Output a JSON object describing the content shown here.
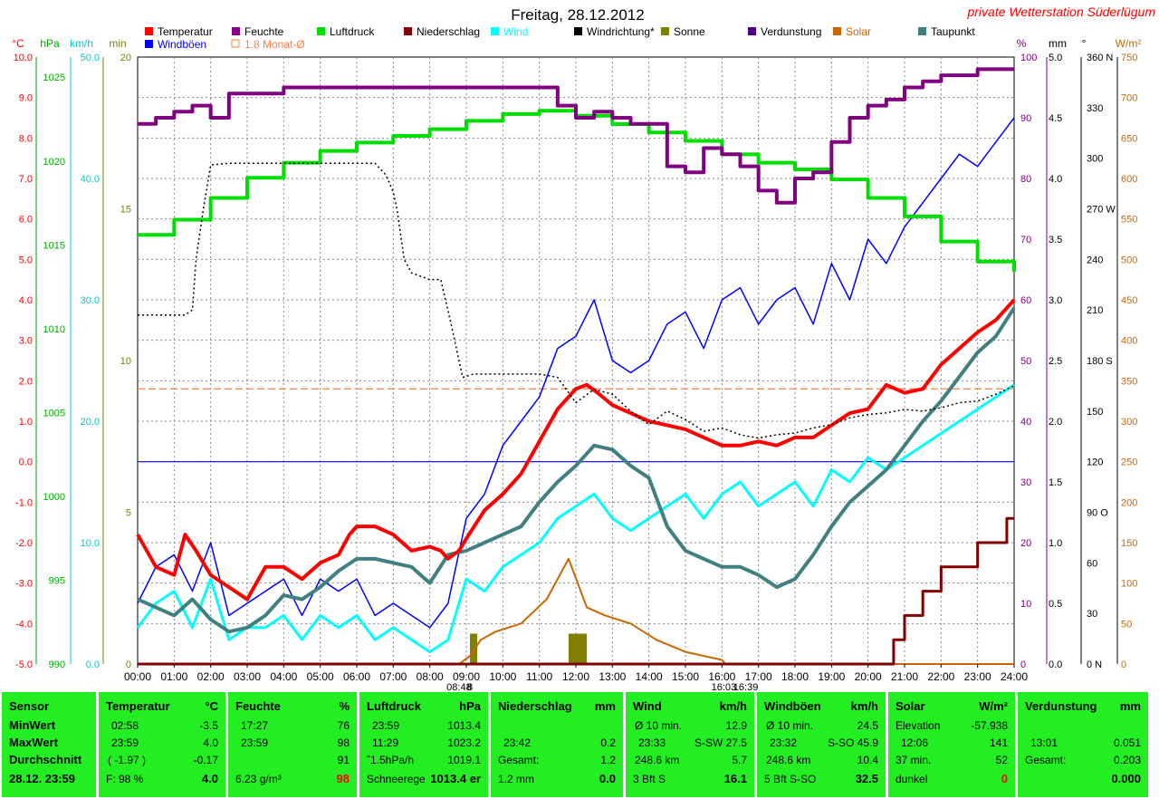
{
  "title": "Freitag, 28.12.2012",
  "brand": "private Wetterstation Süderlügum",
  "legend": [
    {
      "label": "Temperatur",
      "color": "#ff0000"
    },
    {
      "label": "Feuchte",
      "color": "#8b008b"
    },
    {
      "label": "Luftdruck",
      "color": "#00dd00"
    },
    {
      "label": "Niederschlag",
      "color": "#800000"
    },
    {
      "label": "Wind",
      "color": "#00ffff"
    },
    {
      "label": "Windrichtung*",
      "color": "#000000"
    },
    {
      "label": "Sonne",
      "color": "#808000"
    },
    {
      "label": "Verdunstung",
      "color": "#4b0082"
    },
    {
      "label": "Solar",
      "color": "#cc6600"
    },
    {
      "label": "Taupunkt",
      "color": "#408080"
    },
    {
      "label": "Windböen",
      "color": "#0000ff"
    },
    {
      "label": "1.8 Monat-Ø",
      "color": "#ff8040"
    }
  ],
  "axes": {
    "temp": {
      "unit": "°C",
      "color": "#ff0000",
      "ticks": [
        "10.0",
        "9.0",
        "8.0",
        "7.0",
        "6.0",
        "5.0",
        "4.0",
        "3.0",
        "2.0",
        "1.0",
        "0.0",
        "-1.0",
        "-2.0",
        "-3.0",
        "-4.0",
        "-5.0"
      ]
    },
    "press": {
      "unit": "hPa",
      "color": "#00aa00",
      "ticks": [
        "1025",
        "1020",
        "1015",
        "1010",
        "1005",
        "1000",
        "995",
        "990"
      ]
    },
    "wind": {
      "unit": "km/h",
      "color": "#00cccc",
      "ticks": [
        "50.0",
        "40.0",
        "30.0",
        "20.0",
        "10.0",
        "0.0"
      ]
    },
    "sun": {
      "unit": "min",
      "color": "#808000",
      "ticks": [
        "20",
        "15",
        "10",
        "5",
        "0"
      ]
    },
    "hum": {
      "unit": "%",
      "color": "#800080",
      "ticks": [
        "100",
        "90",
        "80",
        "70",
        "60",
        "50",
        "40",
        "30",
        "20",
        "10",
        "0"
      ]
    },
    "rain": {
      "unit": "mm",
      "color": "#000000",
      "ticks": [
        "5.0",
        "4.5",
        "4.0",
        "3.5",
        "3.0",
        "2.5",
        "2.0",
        "1.5",
        "1.0",
        "0.5",
        "0.0"
      ]
    },
    "dir": {
      "unit": "°",
      "color": "#000000",
      "ticks": [
        "360 N",
        "330",
        "300",
        "270 W",
        "240",
        "210",
        "180 S",
        "150",
        "120",
        "90 O",
        "60",
        "30",
        "0 N"
      ]
    },
    "solar": {
      "unit": "W/m²",
      "color": "#cc6600",
      "ticks": [
        "750",
        "700",
        "650",
        "600",
        "550",
        "500",
        "450",
        "400",
        "350",
        "300",
        "250",
        "200",
        "150",
        "100",
        "50",
        "0"
      ]
    }
  },
  "x_ticks": [
    "00:00",
    "01:00",
    "02:00",
    "03:00",
    "04:00",
    "05:00",
    "06:00",
    "07:00",
    "08:00",
    "09:00",
    "10:00",
    "11:00",
    "12:00",
    "13:00",
    "14:00",
    "15:00",
    "16:00",
    "17:00",
    "18:00",
    "19:00",
    "20:00",
    "21:00",
    "22:00",
    "23:00",
    "24:00"
  ],
  "x_markers": [
    {
      "label": "08:48",
      "x": 8.8
    },
    {
      "label": "8",
      "x": 9.1
    },
    {
      "label": "16:03",
      "x": 16.05
    },
    {
      "label": "16:39",
      "x": 16.65
    }
  ],
  "chart_data": {
    "type": "line",
    "x_range": [
      0,
      24
    ],
    "x_unit": "hour",
    "ylim_temp": [
      -5,
      10
    ],
    "ylim_hum": [
      0,
      100
    ],
    "ylim_press": [
      990,
      1026.2
    ],
    "ylim_wind": [
      0,
      50
    ],
    "ylim_rain": [
      0,
      5
    ],
    "ylim_dir": [
      0,
      360
    ],
    "ylim_solar": [
      0,
      750
    ],
    "ylim_sun": [
      0,
      20
    ],
    "series": [
      {
        "name": "Temperatur",
        "axis": "temp",
        "color": "#ff0000",
        "x": [
          0,
          0.5,
          1,
          1.3,
          1.6,
          2,
          2.5,
          3,
          3.5,
          4,
          4.5,
          5,
          5.5,
          5.8,
          6,
          6.5,
          7,
          7.5,
          8,
          8.3,
          8.5,
          8.8,
          9,
          9.5,
          10,
          10.5,
          11,
          11.5,
          12,
          12.3,
          12.6,
          13,
          13.5,
          14,
          14.5,
          15,
          15.5,
          16,
          16.5,
          17,
          17.5,
          18,
          18.5,
          19,
          19.5,
          20,
          20.5,
          21,
          21.5,
          22,
          22.5,
          23,
          23.5,
          24
        ],
        "y": [
          -1.8,
          -2.6,
          -2.8,
          -1.8,
          -2.2,
          -2.8,
          -3.1,
          -3.4,
          -2.6,
          -2.6,
          -2.9,
          -2.5,
          -2.3,
          -1.8,
          -1.6,
          -1.6,
          -1.8,
          -2.2,
          -2.1,
          -2.2,
          -2.4,
          -2.2,
          -1.9,
          -1.2,
          -0.8,
          -0.3,
          0.5,
          1.3,
          1.8,
          1.9,
          1.7,
          1.4,
          1.2,
          1.0,
          0.9,
          0.8,
          0.6,
          0.4,
          0.4,
          0.5,
          0.4,
          0.6,
          0.6,
          0.9,
          1.2,
          1.3,
          1.9,
          1.7,
          1.8,
          2.4,
          2.8,
          3.2,
          3.5,
          4.0
        ]
      },
      {
        "name": "Taupunkt",
        "axis": "temp",
        "color": "#408080",
        "x": [
          0,
          0.5,
          1,
          1.5,
          2,
          2.5,
          3,
          3.5,
          4,
          4.5,
          5,
          5.5,
          6,
          6.5,
          7,
          7.5,
          8,
          8.5,
          9,
          9.5,
          10,
          10.5,
          11,
          11.5,
          12,
          12.5,
          13,
          13.5,
          14,
          14.5,
          15,
          15.5,
          16,
          16.5,
          17,
          17.5,
          18,
          18.5,
          19,
          19.5,
          20,
          20.5,
          21,
          21.5,
          22,
          22.5,
          23,
          23.5,
          24
        ],
        "y": [
          -3.4,
          -3.6,
          -3.8,
          -3.4,
          -3.9,
          -4.2,
          -4.1,
          -3.8,
          -3.3,
          -3.4,
          -3.1,
          -2.7,
          -2.4,
          -2.4,
          -2.5,
          -2.6,
          -3.0,
          -2.3,
          -2.2,
          -2.0,
          -1.8,
          -1.6,
          -1.0,
          -0.5,
          -0.1,
          0.4,
          0.3,
          -0.1,
          -0.4,
          -1.6,
          -2.2,
          -2.4,
          -2.6,
          -2.6,
          -2.8,
          -3.1,
          -2.9,
          -2.3,
          -1.6,
          -1.0,
          -0.6,
          -0.2,
          0.4,
          1.0,
          1.5,
          2.1,
          2.7,
          3.1,
          3.8
        ]
      },
      {
        "name": "Feuchte",
        "axis": "hum",
        "color": "#800080",
        "x": [
          0,
          0.5,
          1,
          1.5,
          2,
          2.5,
          3,
          3.5,
          4,
          4.5,
          5,
          5.5,
          6,
          6.5,
          7,
          7.5,
          8,
          8.5,
          9,
          9.5,
          10,
          10.5,
          11,
          11.5,
          12,
          12.5,
          13,
          13.5,
          14,
          14.5,
          15,
          15.5,
          16,
          16.5,
          17,
          17.5,
          18,
          18.5,
          19,
          19.5,
          20,
          20.5,
          21,
          21.5,
          22,
          22.5,
          23,
          23.5,
          24
        ],
        "y": [
          89,
          90,
          91,
          92,
          90,
          94,
          94,
          94,
          95,
          95,
          95,
          95,
          95,
          95,
          95,
          95,
          95,
          95,
          95,
          95,
          95,
          95,
          95,
          92,
          90,
          91,
          90,
          89,
          89,
          82,
          81,
          85,
          84,
          82,
          78,
          76,
          80,
          81,
          86,
          90,
          92,
          93,
          95,
          96,
          97,
          97,
          98,
          98,
          98
        ]
      },
      {
        "name": "Luftdruck",
        "axis": "press",
        "color": "#00dd00",
        "x": [
          0,
          1,
          2,
          3,
          4,
          5,
          6,
          7,
          8,
          9,
          10,
          11,
          12,
          13,
          14,
          15,
          16,
          17,
          18,
          19,
          20,
          21,
          22,
          23,
          24
        ],
        "y": [
          1015.6,
          1016.5,
          1017.8,
          1019.0,
          1019.9,
          1020.6,
          1021.1,
          1021.5,
          1021.9,
          1022.4,
          1022.8,
          1023.0,
          1022.7,
          1022.2,
          1021.7,
          1021.2,
          1020.4,
          1019.9,
          1019.5,
          1018.9,
          1017.8,
          1016.7,
          1015.2,
          1014.0,
          1013.4
        ]
      },
      {
        "name": "Niederschlag",
        "axis": "rain",
        "color": "#800000",
        "x": [
          0,
          20.6,
          20.7,
          21,
          21.5,
          21.8,
          22,
          22.6,
          23,
          23.5,
          23.8,
          24
        ],
        "y": [
          0,
          0,
          0.2,
          0.4,
          0.6,
          0.6,
          0.8,
          0.8,
          1.0,
          1.0,
          1.2,
          1.2
        ]
      },
      {
        "name": "Windrichtung*",
        "axis": "dir",
        "color": "#000000",
        "x": [
          0,
          0.6,
          1.3,
          1.5,
          1.6,
          1.8,
          2,
          2.5,
          3,
          4,
          5,
          6,
          6.5,
          6.8,
          7.0,
          7.1,
          7.3,
          7.5,
          8,
          8.3,
          8.6,
          8.9,
          9.2,
          9.5,
          10,
          10.5,
          11,
          11.5,
          12,
          12.5,
          13,
          13.5,
          14,
          14.5,
          15,
          15.5,
          16,
          16.5,
          17,
          17.5,
          18,
          18.5,
          19,
          19.5,
          20,
          20.5,
          21,
          21.5,
          22,
          22.5,
          23,
          23.5,
          24
        ],
        "y": [
          207,
          207,
          207,
          210,
          240,
          270,
          296,
          297,
          297,
          297,
          297,
          297,
          297,
          290,
          280,
          270,
          240,
          232,
          228,
          228,
          200,
          170,
          172,
          172,
          172,
          172,
          172,
          170,
          155,
          163,
          160,
          150,
          142,
          150,
          145,
          138,
          140,
          136,
          134,
          136,
          137,
          140,
          142,
          146,
          148,
          149,
          151,
          150,
          152,
          155,
          156,
          160,
          165
        ]
      },
      {
        "name": "Solar",
        "axis": "solar",
        "color": "#cc6600",
        "x": [
          0,
          8.8,
          9.1,
          9.4,
          9.8,
          10.5,
          11.2,
          11.8,
          12.3,
          12.8,
          13.5,
          14.2,
          15,
          15.5,
          16.0,
          16.1,
          24
        ],
        "y": [
          0,
          0,
          10,
          30,
          40,
          50,
          80,
          130,
          70,
          60,
          50,
          30,
          15,
          10,
          5,
          0,
          0
        ]
      },
      {
        "name": "Sonne",
        "axis": "sun",
        "color": "#808000",
        "bars": [
          {
            "x": 9.1,
            "w": 0.2,
            "y": 1.0
          },
          {
            "x": 11.8,
            "w": 0.5,
            "y": 1.0
          }
        ]
      },
      {
        "name": "Wind",
        "axis": "wind",
        "color": "#00ffff",
        "x": [
          0,
          0.5,
          1,
          1.5,
          2,
          2.5,
          3,
          3.5,
          4,
          4.5,
          5,
          5.5,
          6,
          6.5,
          7,
          7.5,
          8,
          8.5,
          9,
          9.5,
          10,
          10.5,
          11,
          11.5,
          12,
          12.5,
          13,
          13.5,
          14,
          14.5,
          15,
          15.5,
          16,
          16.5,
          17,
          17.5,
          18,
          18.5,
          19,
          19.5,
          20,
          20.5,
          21,
          21.5,
          22,
          22.5,
          23,
          23.5,
          24
        ],
        "y": [
          3,
          5,
          6,
          3,
          7,
          2,
          3,
          3,
          4,
          2,
          4,
          3,
          4,
          2,
          3,
          2,
          1,
          2,
          7,
          6,
          8,
          9,
          10,
          12,
          13,
          14,
          12,
          11,
          12,
          13,
          14,
          12,
          14,
          15,
          13,
          14,
          15,
          13,
          16,
          15,
          17,
          16,
          17,
          18,
          19,
          20,
          21,
          22,
          23
        ]
      },
      {
        "name": "Windböen",
        "axis": "wind",
        "color": "#0000ff",
        "x": [
          0,
          0.5,
          1,
          1.5,
          2,
          2.5,
          3,
          3.5,
          4,
          4.5,
          5,
          5.5,
          6,
          6.5,
          7,
          7.5,
          8,
          8.5,
          9,
          9.5,
          10,
          10.5,
          11,
          11.5,
          12,
          12.5,
          13,
          13.5,
          14,
          14.5,
          15,
          15.5,
          16,
          16.5,
          17,
          17.5,
          18,
          18.5,
          19,
          19.5,
          20,
          20.5,
          21,
          21.5,
          22,
          22.5,
          23,
          23.5,
          24
        ],
        "y": [
          5,
          8,
          9,
          6,
          10,
          4,
          5,
          6,
          7,
          4,
          7,
          6,
          7,
          4,
          5,
          4,
          3,
          5,
          12,
          14,
          18,
          20,
          22,
          26,
          27,
          30,
          25,
          24,
          25,
          28,
          29,
          26,
          30,
          31,
          28,
          30,
          31,
          28,
          33,
          30,
          35,
          33,
          36,
          38,
          40,
          42,
          41,
          43,
          45
        ]
      }
    ],
    "reference_lines": [
      {
        "name": "1.8 Monat-Ø",
        "axis": "temp",
        "y": 1.8,
        "color": "#ff8040",
        "dash": true
      },
      {
        "name": "0 °C",
        "axis": "temp",
        "y": 0.0,
        "color": "#0000ff",
        "dash": false
      }
    ]
  },
  "panel": {
    "sensor": {
      "header": "Sensor",
      "rows": [
        "MinWert",
        "MaxWert",
        "Durchschnitt",
        "28.12. 23:59"
      ]
    },
    "temperatur": {
      "header": "Temperatur",
      "unit": "°C",
      "rows": [
        [
          "02:58",
          "-3.5"
        ],
        [
          "23:59",
          "4.0"
        ],
        [
          "( -1.97 )",
          "-0.17"
        ],
        [
          "F: 98 %",
          "4.0"
        ]
      ]
    },
    "feuchte": {
      "header": "Feuchte",
      "unit": "%",
      "rows": [
        [
          "17:27",
          "76"
        ],
        [
          "23:59",
          "98"
        ],
        [
          "",
          "91"
        ],
        [
          "6.23 g/m³",
          "98"
        ]
      ]
    },
    "luftdruck": {
      "header": "Luftdruck",
      "unit": "hPa",
      "rows": [
        [
          "23:59",
          "1013.4"
        ],
        [
          "11:29",
          "1023.2"
        ],
        [
          "ˆ1.5hPa/h",
          "1019.1"
        ],
        [
          "Schneerege",
          "1013.4 er"
        ]
      ]
    },
    "niederschlag": {
      "header": "Niederschlag",
      "unit": "mm",
      "rows": [
        [
          "",
          ""
        ],
        [
          "23:42",
          "0.2"
        ],
        [
          "Gesamt:",
          "1.2"
        ],
        [
          "1.2 mm",
          "0.0"
        ]
      ]
    },
    "wind": {
      "header": "Wind",
      "unit": "km/h",
      "rows": [
        [
          "Ø 10 min.",
          "12.9"
        ],
        [
          "23:33",
          "S-SW 27.5"
        ],
        [
          "248.6 km",
          "5.7"
        ],
        [
          "3 Bft S",
          "16.1"
        ]
      ]
    },
    "windboeen": {
      "header": "Windböen",
      "unit": "km/h",
      "rows": [
        [
          "Ø 10 min.",
          "24.5"
        ],
        [
          "23:32",
          "S-SO 45.9"
        ],
        [
          "248.6 km",
          "10.4"
        ],
        [
          "5 Bft S-SO",
          "32.5"
        ]
      ]
    },
    "solar": {
      "header": "Solar",
      "unit": "W/m²",
      "rows": [
        [
          "Elevation",
          "-57.938"
        ],
        [
          "12:06",
          "141"
        ],
        [
          "37 min.",
          "52"
        ],
        [
          "dunkel",
          "0"
        ]
      ]
    },
    "verdunstung": {
      "header": "Verdunstung",
      "unit": "mm",
      "rows": [
        [
          "",
          ""
        ],
        [
          "13:01",
          "0.051"
        ],
        [
          "Gesamt:",
          "0.203"
        ],
        [
          "",
          "0.000"
        ]
      ]
    }
  }
}
